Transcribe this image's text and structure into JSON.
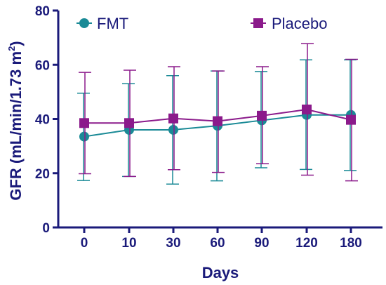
{
  "chart_data": {
    "type": "line",
    "categories": [
      "0",
      "10",
      "30",
      "60",
      "90",
      "120",
      "180"
    ],
    "xlabel": "Days",
    "ylabel": "GFR (mL/min/1.73 m",
    "ylabel_sup": "2",
    "ylabel_close": ")",
    "ylim": [
      0,
      80
    ],
    "yticks": [
      "0",
      "20",
      "40",
      "60",
      "80"
    ],
    "legend_position": "top",
    "grid": false,
    "axis_color": "#1a1a7a",
    "series": [
      {
        "name": "FMT",
        "color": "#1a8a96",
        "marker": "circle",
        "values": [
          33.5,
          36,
          36,
          37.5,
          39.5,
          41.5,
          41.5
        ],
        "err_low": [
          17.3,
          18.8,
          16.0,
          17.2,
          22.0,
          21.4,
          21.0
        ],
        "err_high": [
          49.5,
          53.0,
          56.0,
          57.7,
          57.5,
          61.8,
          61.8
        ]
      },
      {
        "name": "Placebo",
        "color": "#8b1a8b",
        "marker": "square",
        "values": [
          38.5,
          38.5,
          40.2,
          39.2,
          41.2,
          43.5,
          39.7
        ],
        "err_low": [
          19.8,
          18.8,
          21.3,
          20.3,
          23.5,
          19.3,
          17.2
        ],
        "err_high": [
          57.2,
          58.0,
          59.3,
          57.7,
          59.3,
          67.8,
          62.0
        ]
      }
    ]
  }
}
